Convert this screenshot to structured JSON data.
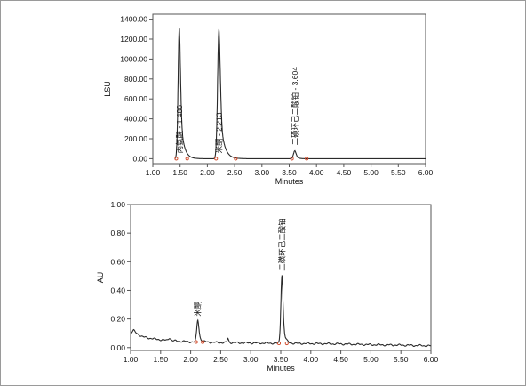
{
  "chart_data": [
    {
      "type": "line",
      "ylabel": "LSU",
      "xlabel": "Minutes",
      "xlim": [
        1.0,
        6.0
      ],
      "ylim": [
        -50,
        1450
      ],
      "x_ticks": [
        1.0,
        1.5,
        2.0,
        2.5,
        3.0,
        3.5,
        4.0,
        4.5,
        5.0,
        5.5,
        6.0
      ],
      "x_tick_labels": [
        "1.00",
        "1.50",
        "2.00",
        "2.50",
        "3.00",
        "3.50",
        "4.00",
        "4.50",
        "5.00",
        "5.50",
        "6.00"
      ],
      "y_ticks": [
        0,
        200,
        400,
        600,
        800,
        1000,
        1200,
        1400
      ],
      "y_tick_labels": [
        "0.00",
        "200.00",
        "400.00",
        "600.00",
        "800.00",
        "1000.00",
        "1200.00",
        "1400.00"
      ],
      "trace_start": 1.4,
      "baseline": 0,
      "line_color": "#2a2a2a",
      "marker_color": "#d04a2a",
      "peaks": [
        {
          "rt": 1.486,
          "height": 1320,
          "width": 0.022,
          "tail": 0.06,
          "label": "丙氨酸 - 1.486",
          "start": 1.43,
          "end": 1.63
        },
        {
          "rt": 2.213,
          "height": 1300,
          "width": 0.025,
          "tail": 0.07,
          "label": "米酮 - 2.213",
          "start": 2.16,
          "end": 2.52
        },
        {
          "rt": 3.604,
          "height": 80,
          "width": 0.025,
          "tail": 0.04,
          "label": "二磺环己二酸铂 - 3.604",
          "start": 3.55,
          "end": 3.82
        }
      ]
    },
    {
      "type": "line",
      "ylabel": "AU",
      "xlabel": "Minutes",
      "xlim": [
        1.0,
        6.0
      ],
      "ylim": [
        -0.02,
        1.0
      ],
      "x_ticks": [
        1.0,
        1.5,
        2.0,
        2.5,
        3.0,
        3.5,
        4.0,
        4.5,
        5.0,
        5.5,
        6.0
      ],
      "x_tick_labels": [
        "1.00",
        "1.50",
        "2.00",
        "2.50",
        "3.00",
        "3.50",
        "4.00",
        "4.50",
        "5.00",
        "5.50",
        "6.00"
      ],
      "y_ticks": [
        0.0,
        0.2,
        0.4,
        0.6,
        0.8,
        1.0
      ],
      "y_tick_labels": [
        "0.00",
        "0.20",
        "0.40",
        "0.60",
        "0.80",
        "1.00"
      ],
      "line_color": "#2a2a2a",
      "marker_color": "#d04a2a",
      "baseline": [
        [
          1.0,
          0.1
        ],
        [
          1.05,
          0.12
        ],
        [
          1.1,
          0.1
        ],
        [
          1.2,
          0.075
        ],
        [
          1.4,
          0.06
        ],
        [
          1.6,
          0.05
        ],
        [
          1.8,
          0.045
        ],
        [
          2.0,
          0.04
        ],
        [
          2.5,
          0.035
        ],
        [
          3.0,
          0.032
        ],
        [
          3.5,
          0.03
        ],
        [
          4.0,
          0.028
        ],
        [
          4.5,
          0.025
        ],
        [
          5.0,
          0.02
        ],
        [
          5.5,
          0.017
        ],
        [
          6.0,
          0.012
        ]
      ],
      "peaks": [
        {
          "rt": 1.65,
          "height": 0.02,
          "width": 0.02,
          "tail": 0.02
        },
        {
          "rt": 2.12,
          "height": 0.155,
          "width": 0.018,
          "tail": 0.04,
          "label": "米酮",
          "start": 2.09,
          "end": 2.2
        },
        {
          "rt": 2.62,
          "height": 0.03,
          "width": 0.012,
          "tail": 0.02
        },
        {
          "rt": 3.52,
          "height": 0.48,
          "width": 0.018,
          "tail": 0.035,
          "label": "二磺环己二酸铂",
          "start": 3.47,
          "end": 3.6
        }
      ]
    }
  ]
}
